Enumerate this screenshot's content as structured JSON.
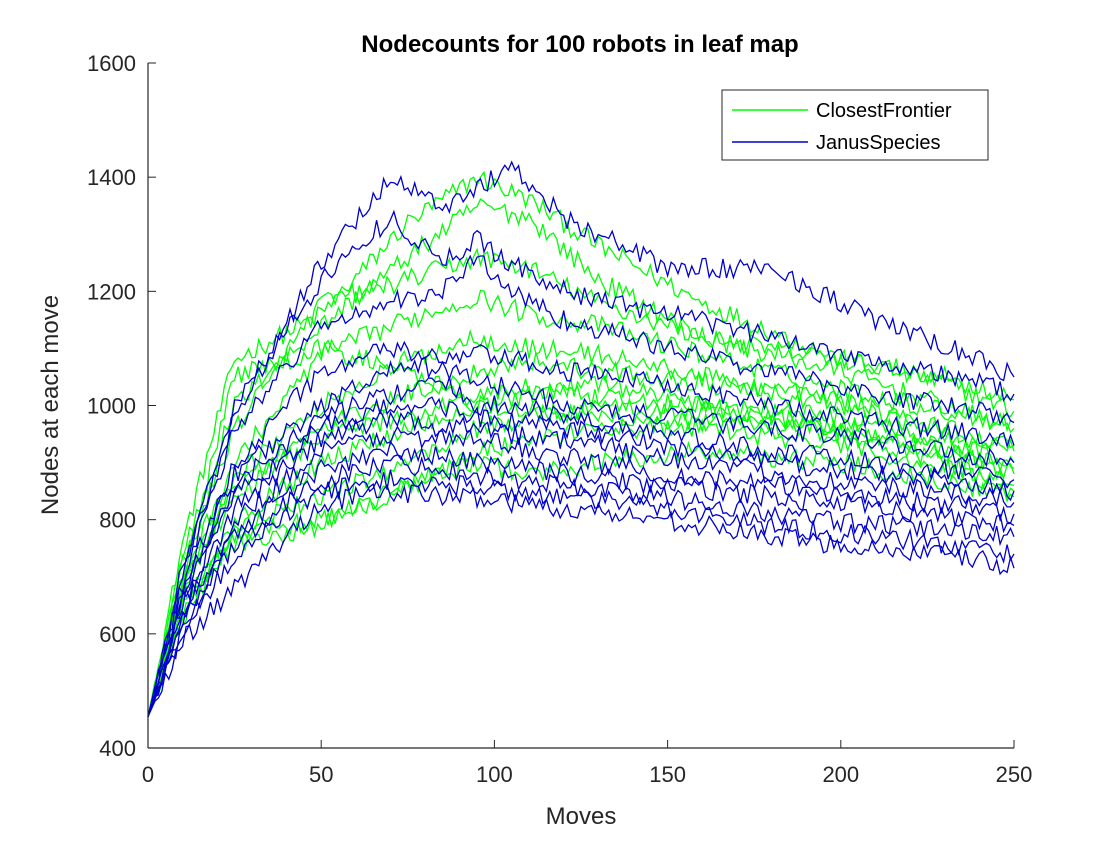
{
  "chart_data": {
    "type": "line",
    "title": "Nodecounts for 100 robots in leaf map",
    "xlabel": "Moves",
    "ylabel": "Nodes at each move",
    "xlim": [
      0,
      250
    ],
    "ylim": [
      400,
      1600
    ],
    "xticks": [
      0,
      50,
      100,
      150,
      200,
      250
    ],
    "yticks": [
      400,
      600,
      800,
      1000,
      1200,
      1400,
      1600
    ],
    "grid": false,
    "legend_location": "top-right",
    "series": [
      {
        "name": "ClosestFrontier",
        "color": "#00ff00",
        "lines": [
          {
            "x": [
              0,
              10,
              25,
              50,
              75,
              95,
              110,
              130,
              160,
              200,
              230,
              250
            ],
            "y": [
              455,
              760,
              1080,
              1160,
              1320,
              1400,
              1360,
              1280,
              1180,
              1080,
              1040,
              990
            ]
          },
          {
            "x": [
              0,
              10,
              25,
              50,
              75,
              95,
              110,
              130,
              160,
              200,
              230,
              250
            ],
            "y": [
              455,
              740,
              1000,
              1140,
              1260,
              1350,
              1330,
              1220,
              1120,
              1060,
              1000,
              960
            ]
          },
          {
            "x": [
              0,
              10,
              25,
              50,
              75,
              95,
              110,
              130,
              160,
              200,
              230,
              250
            ],
            "y": [
              455,
              720,
              960,
              1180,
              1220,
              1260,
              1240,
              1180,
              1120,
              1080,
              1050,
              1010
            ]
          },
          {
            "x": [
              0,
              10,
              25,
              50,
              75,
              95,
              110,
              130,
              160,
              200,
              230,
              250
            ],
            "y": [
              455,
              700,
              900,
              1090,
              1150,
              1190,
              1160,
              1140,
              1090,
              1030,
              990,
              970
            ]
          },
          {
            "x": [
              0,
              10,
              25,
              50,
              75,
              95,
              110,
              130,
              160,
              200,
              230,
              250
            ],
            "y": [
              455,
              690,
              880,
              1000,
              1080,
              1120,
              1100,
              1090,
              1050,
              1010,
              950,
              930
            ]
          },
          {
            "x": [
              0,
              10,
              25,
              50,
              75,
              95,
              110,
              130,
              160,
              200,
              230,
              250
            ],
            "y": [
              455,
              680,
              860,
              960,
              1020,
              1060,
              1080,
              1060,
              1040,
              1000,
              960,
              920
            ]
          },
          {
            "x": [
              0,
              10,
              25,
              50,
              75,
              95,
              110,
              130,
              160,
              200,
              230,
              250
            ],
            "y": [
              455,
              670,
              840,
              950,
              980,
              1020,
              1030,
              1010,
              1000,
              980,
              940,
              900
            ]
          },
          {
            "x": [
              0,
              10,
              25,
              50,
              75,
              95,
              110,
              130,
              160,
              200,
              230,
              250
            ],
            "y": [
              455,
              650,
              800,
              900,
              960,
              1000,
              990,
              980,
              970,
              960,
              920,
              880
            ]
          },
          {
            "x": [
              0,
              10,
              25,
              50,
              75,
              95,
              110,
              130,
              160,
              200,
              230,
              250
            ],
            "y": [
              455,
              640,
              780,
              840,
              900,
              960,
              980,
              1000,
              990,
              950,
              900,
              860
            ]
          },
          {
            "x": [
              0,
              10,
              25,
              50,
              75,
              95,
              110,
              130,
              160,
              200,
              230,
              250
            ],
            "y": [
              455,
              630,
              770,
              800,
              860,
              920,
              940,
              960,
              960,
              930,
              890,
              850
            ]
          },
          {
            "x": [
              0,
              10,
              25,
              50,
              75,
              95,
              110,
              130,
              160,
              200,
              230,
              250
            ],
            "y": [
              455,
              660,
              760,
              790,
              860,
              900,
              880,
              900,
              920,
              900,
              870,
              840
            ]
          },
          {
            "x": [
              0,
              10,
              25,
              50,
              75,
              95,
              110,
              130,
              160,
              200,
              230,
              250
            ],
            "y": [
              455,
              700,
              1050,
              1100,
              1060,
              1000,
              1020,
              1040,
              1000,
              960,
              920,
              890
            ]
          }
        ]
      },
      {
        "name": "JanusSpecies",
        "color": "#0000cd",
        "lines": [
          {
            "x": [
              0,
              10,
              25,
              50,
              70,
              85,
              95,
              105,
              120,
              150,
              180,
              210,
              240,
              250
            ],
            "y": [
              455,
              720,
              980,
              1250,
              1400,
              1350,
              1380,
              1420,
              1330,
              1240,
              1240,
              1150,
              1080,
              1050
            ]
          },
          {
            "x": [
              0,
              10,
              25,
              50,
              70,
              85,
              95,
              105,
              120,
              150,
              180,
              210,
              240,
              250
            ],
            "y": [
              455,
              700,
              1000,
              1220,
              1330,
              1250,
              1290,
              1250,
              1200,
              1160,
              1120,
              1080,
              1040,
              1020
            ]
          },
          {
            "x": [
              0,
              10,
              25,
              50,
              70,
              85,
              95,
              105,
              120,
              150,
              180,
              210,
              240,
              250
            ],
            "y": [
              455,
              690,
              960,
              1140,
              1180,
              1200,
              1260,
              1200,
              1150,
              1100,
              1060,
              1020,
              990,
              970
            ]
          },
          {
            "x": [
              0,
              10,
              25,
              50,
              70,
              85,
              95,
              105,
              120,
              150,
              180,
              210,
              240,
              250
            ],
            "y": [
              455,
              680,
              900,
              1060,
              1100,
              1080,
              1090,
              1080,
              1060,
              1040,
              1000,
              970,
              950,
              930
            ]
          },
          {
            "x": [
              0,
              10,
              25,
              50,
              70,
              85,
              95,
              105,
              120,
              150,
              180,
              210,
              240,
              250
            ],
            "y": [
              455,
              670,
              880,
              1000,
              1060,
              1070,
              1040,
              1030,
              1000,
              980,
              960,
              940,
              910,
              900
            ]
          },
          {
            "x": [
              0,
              10,
              25,
              50,
              70,
              85,
              95,
              105,
              120,
              150,
              180,
              210,
              240,
              250
            ],
            "y": [
              455,
              660,
              860,
              980,
              1020,
              1040,
              1000,
              1000,
              980,
              950,
              920,
              900,
              880,
              870
            ]
          },
          {
            "x": [
              0,
              10,
              25,
              50,
              70,
              85,
              95,
              105,
              120,
              150,
              180,
              210,
              240,
              250
            ],
            "y": [
              455,
              650,
              840,
              960,
              1000,
              1000,
              980,
              970,
              960,
              930,
              900,
              880,
              860,
              850
            ]
          },
          {
            "x": [
              0,
              10,
              25,
              50,
              70,
              85,
              95,
              105,
              120,
              150,
              180,
              210,
              240,
              250
            ],
            "y": [
              455,
              640,
              820,
              940,
              980,
              960,
              970,
              950,
              940,
              910,
              880,
              860,
              840,
              830
            ]
          },
          {
            "x": [
              0,
              10,
              25,
              50,
              70,
              85,
              95,
              105,
              120,
              150,
              180,
              210,
              240,
              250
            ],
            "y": [
              455,
              630,
              800,
              920,
              950,
              940,
              940,
              930,
              910,
              880,
              860,
              840,
              820,
              810
            ]
          },
          {
            "x": [
              0,
              10,
              25,
              50,
              70,
              85,
              95,
              105,
              120,
              150,
              180,
              210,
              240,
              250
            ],
            "y": [
              455,
              620,
              780,
              890,
              920,
              910,
              900,
              900,
              880,
              860,
              840,
              820,
              800,
              790
            ]
          },
          {
            "x": [
              0,
              10,
              25,
              50,
              70,
              85,
              95,
              105,
              120,
              150,
              180,
              210,
              240,
              250
            ],
            "y": [
              455,
              610,
              760,
              870,
              900,
              890,
              880,
              870,
              860,
              840,
              810,
              790,
              780,
              770
            ]
          },
          {
            "x": [
              0,
              10,
              25,
              50,
              70,
              85,
              95,
              105,
              120,
              150,
              180,
              210,
              240,
              250
            ],
            "y": [
              455,
              600,
              740,
              850,
              870,
              860,
              860,
              850,
              840,
              820,
              790,
              770,
              750,
              740
            ]
          },
          {
            "x": [
              0,
              10,
              25,
              50,
              70,
              85,
              95,
              105,
              120,
              150,
              180,
              210,
              240,
              250
            ],
            "y": [
              455,
              590,
              680,
              830,
              850,
              840,
              840,
              830,
              820,
              800,
              770,
              750,
              730,
              715
            ]
          }
        ]
      }
    ]
  }
}
